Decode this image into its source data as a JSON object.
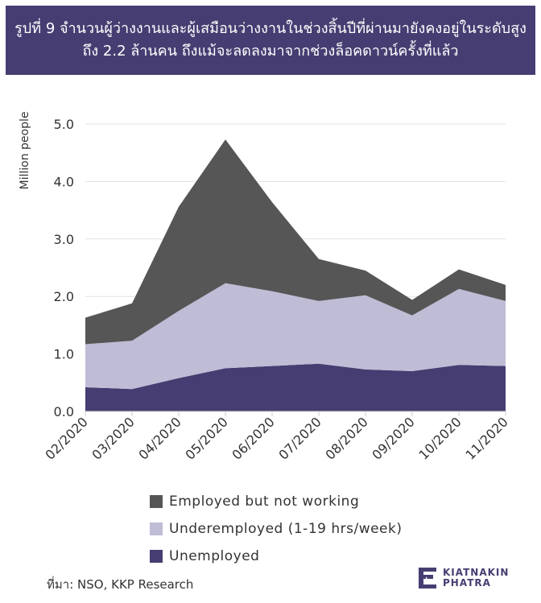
{
  "title": {
    "line1": "รูปที่ 9 จำนวนผู้ว่างงานและผู้เสมือนว่างงานในช่วงสิ้นปีที่ผ่านมายังคงอยู่ในระดับสูง",
    "line2": "ถึง 2.2 ล้านคน ถึงแม้จะลดลงมาจากช่วงล็อคดาวน์ครั้งที่แล้ว"
  },
  "source": "ที่มา: NSO, KKP Research",
  "logo": {
    "line1": "KIATNAKIN",
    "line2": "PHATRA"
  },
  "colors": {
    "title_bg": "#463e72",
    "employed_not_working": "#565656",
    "underemployed": "#bfbcd6",
    "unemployed": "#463e72",
    "grid": "#e2e2e2"
  },
  "chart_data": {
    "type": "area",
    "stacked": true,
    "title": "",
    "xlabel": "",
    "ylabel": "Million people",
    "ylim": [
      0,
      5
    ],
    "yticks": [
      "0.0",
      "1.0",
      "2.0",
      "3.0",
      "4.0",
      "5.0"
    ],
    "categories": [
      "02/2020",
      "03/2020",
      "04/2020",
      "05/2020",
      "06/2020",
      "07/2020",
      "08/2020",
      "09/2020",
      "10/2020",
      "11/2020"
    ],
    "series": [
      {
        "name": "Unemployed",
        "color": "#463e72",
        "values": [
          0.42,
          0.39,
          0.58,
          0.75,
          0.79,
          0.83,
          0.73,
          0.7,
          0.81,
          0.79
        ]
      },
      {
        "name": "Underemployed (1-19 hrs/week)",
        "color": "#bfbcd6",
        "values": [
          0.75,
          0.84,
          1.17,
          1.48,
          1.3,
          1.09,
          1.29,
          0.97,
          1.32,
          1.13
        ]
      },
      {
        "name": "Employed but not working",
        "color": "#565656",
        "values": [
          0.46,
          0.65,
          1.81,
          2.5,
          1.55,
          0.73,
          0.43,
          0.27,
          0.34,
          0.28
        ]
      }
    ],
    "legend_position": "bottom",
    "legend_order": [
      "Employed but not working",
      "Underemployed (1-19 hrs/week)",
      "Unemployed"
    ],
    "grid": true
  }
}
